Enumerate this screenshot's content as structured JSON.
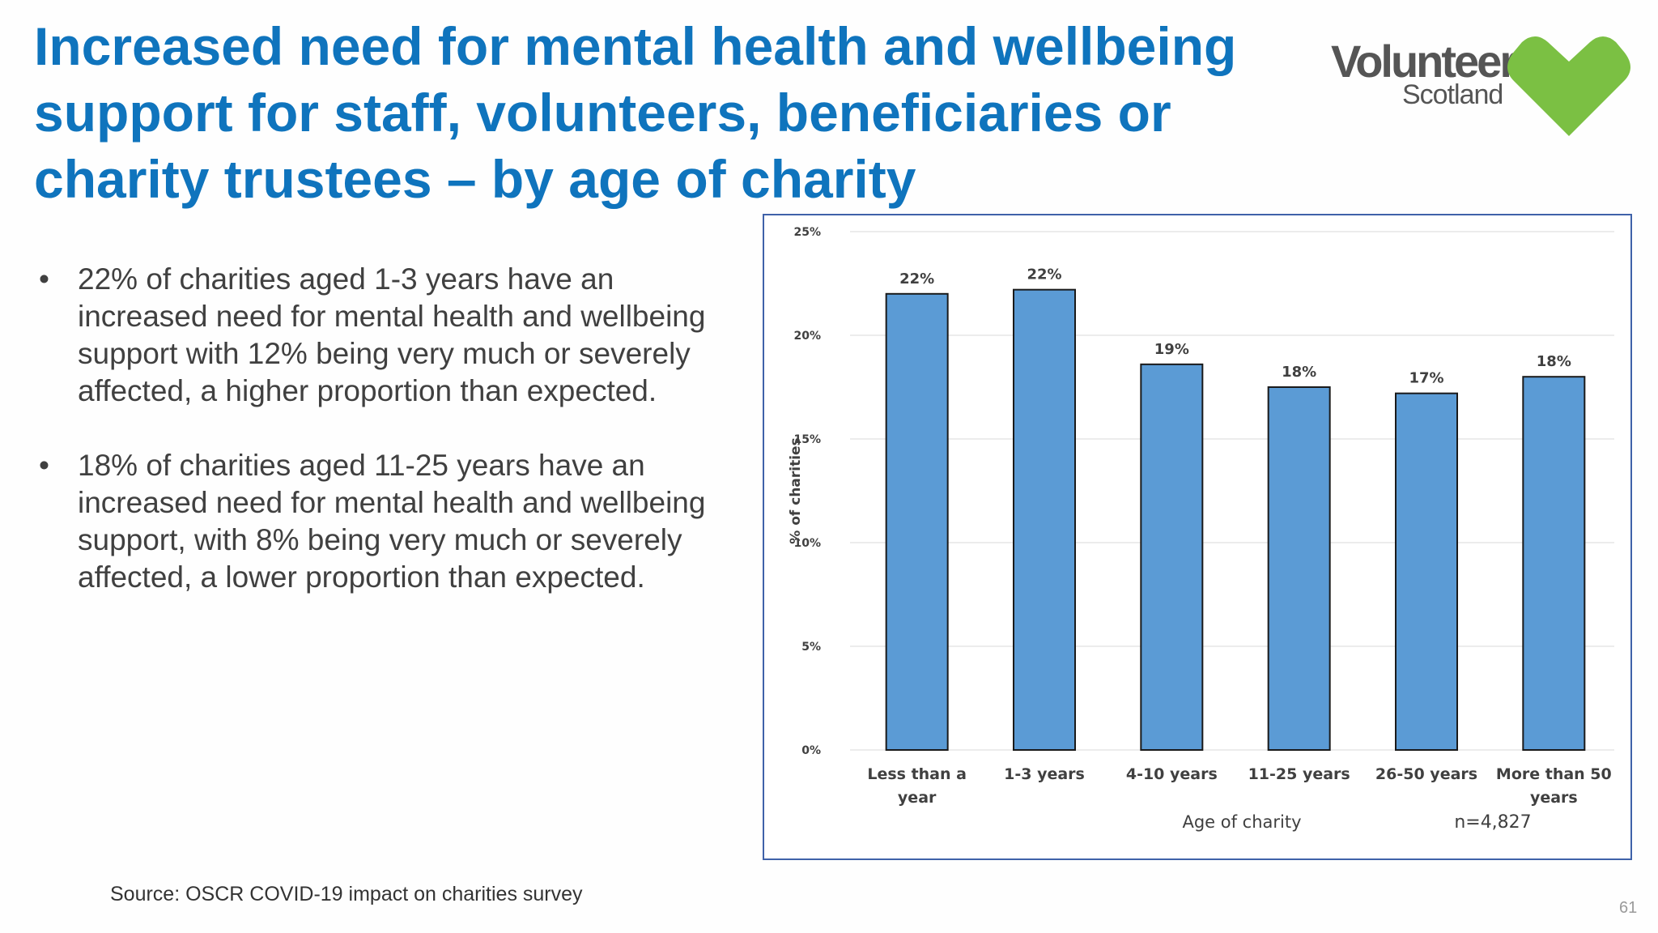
{
  "slide": {
    "title_lines": [
      "Increased need for mental health and wellbeing",
      "support for staff, volunteers, beneficiaries or",
      "charity trustees – by age of charity"
    ],
    "logo": {
      "line1": "Volunteer",
      "line2": "Scotland"
    },
    "bullets": [
      {
        "marker": "•",
        "lines": [
          "22% of charities aged 1-3 years have an",
          "increased need for mental health and wellbeing",
          "support with 12% being very much or severely",
          "affected, a higher proportion than expected."
        ]
      },
      {
        "marker": "•",
        "lines": [
          "18% of charities aged 11-25 years have an",
          "increased need for mental health and wellbeing",
          "support, with 8% being very much or severely",
          "affected, a lower proportion than expected."
        ]
      }
    ],
    "source": "Source: OSCR COVID-19 impact on charities survey",
    "page_number": "61"
  },
  "colors": {
    "title": "#0f74bd",
    "bar_fill": "#5b9bd5",
    "bar_stroke": "#1a1a1a",
    "frame": "#3f62a9",
    "logo_green": "#7bc043",
    "gridline": "#d9d9d9"
  },
  "chart_data": {
    "type": "bar",
    "categories": [
      [
        "Less than a",
        "year"
      ],
      [
        "1-3 years"
      ],
      [
        "4-10 years"
      ],
      [
        "11-25 years"
      ],
      [
        "26-50 years"
      ],
      [
        "More than 50",
        "years"
      ]
    ],
    "values": [
      22.0,
      22.2,
      18.6,
      17.5,
      17.2,
      18.0
    ],
    "data_labels": [
      "22%",
      "22%",
      "19%",
      "18%",
      "17%",
      "18%"
    ],
    "ylim": [
      0,
      25
    ],
    "yticks": [
      0,
      5,
      10,
      15,
      20,
      25
    ],
    "ytick_labels": [
      "0%",
      "5%",
      "10%",
      "15%",
      "20%",
      "25%"
    ],
    "xlabel": "Age of charity",
    "ylabel": "% of charities",
    "annotation": "n=4,827",
    "grid": true,
    "legend": false
  }
}
